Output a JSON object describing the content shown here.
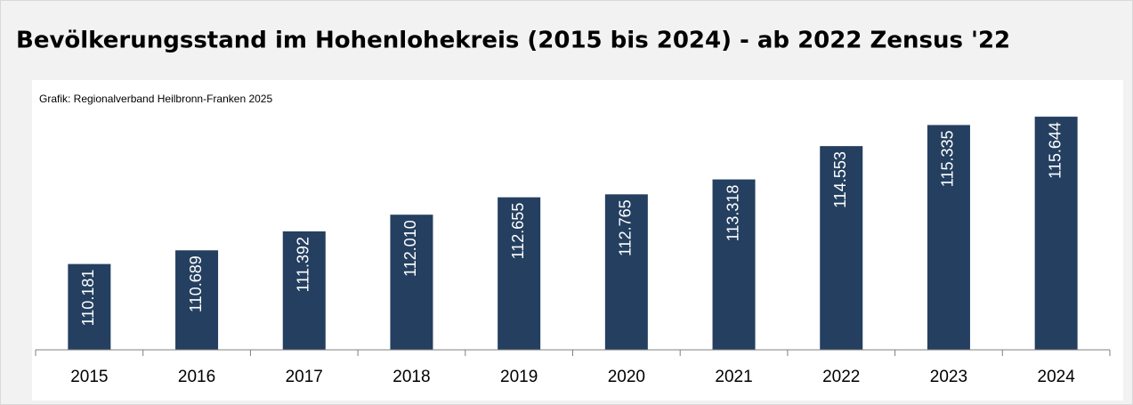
{
  "chart_data": {
    "type": "bar",
    "title": "Bevölkerungsstand im Hohenlohekreis (2015 bis 2024) - ab 2022 Zensus '22",
    "source": "Grafik: Regionalverband Heilbronn-Franken 2025",
    "categories": [
      "2015",
      "2016",
      "2017",
      "2018",
      "2019",
      "2020",
      "2021",
      "2022",
      "2023",
      "2024"
    ],
    "values": [
      110181,
      110689,
      111392,
      112010,
      112655,
      112765,
      113318,
      114553,
      115335,
      115644
    ],
    "value_labels": [
      "110.181",
      "110.689",
      "111.392",
      "112.010",
      "112.655",
      "112.765",
      "113.318",
      "114.553",
      "115.335",
      "115.644"
    ],
    "color": "#243f60",
    "ylim": [
      107000,
      117000
    ]
  }
}
